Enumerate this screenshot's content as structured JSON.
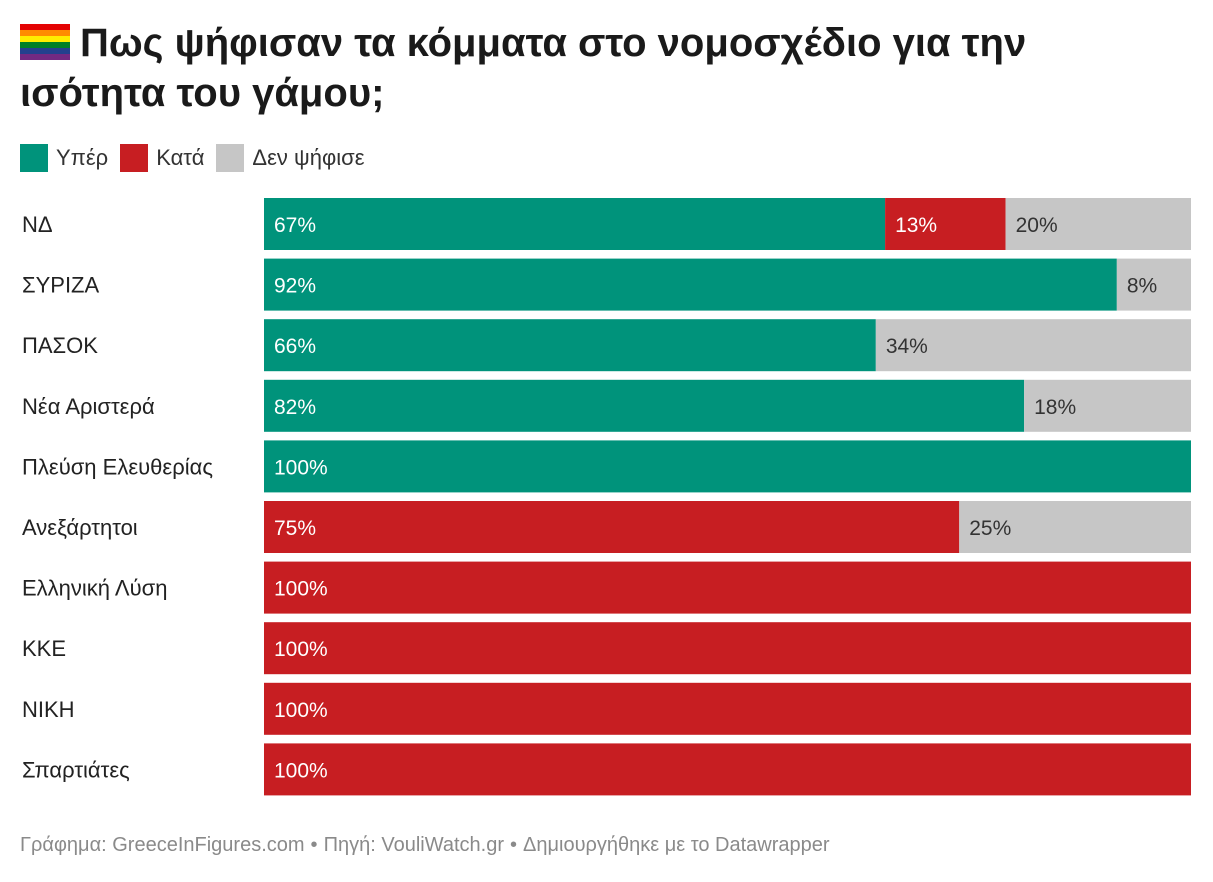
{
  "title": "Πως ψήφισαν τα κόμματα στο νομοσχέδιο για την ισότητα του γάμου;",
  "colors": {
    "yes": "#00937b",
    "no": "#c71e22",
    "absent": "#c6c6c6"
  },
  "chart_data": {
    "type": "bar",
    "orientation": "horizontal",
    "stacked": true,
    "categories": [
      "ΝΔ",
      "ΣΥΡΙΖΑ",
      "ΠΑΣΟΚ",
      "Νέα Αριστερά",
      "Πλεύση Ελευθερίας",
      "Ανεξάρτητοι",
      "Ελληνική Λύση",
      "ΚΚΕ",
      "ΝΙΚΗ",
      "Σπαρτιάτες"
    ],
    "series": [
      {
        "key": "yes",
        "name": "Υπέρ",
        "values": [
          67,
          92,
          66,
          82,
          100,
          0,
          0,
          0,
          0,
          0
        ]
      },
      {
        "key": "no",
        "name": "Κατά",
        "values": [
          13,
          0,
          0,
          0,
          0,
          75,
          100,
          100,
          100,
          100
        ]
      },
      {
        "key": "absent",
        "name": "Δεν ψήφισε",
        "values": [
          20,
          8,
          34,
          18,
          0,
          25,
          0,
          0,
          0,
          0
        ]
      }
    ],
    "value_suffix": "%",
    "xlim": [
      0,
      100
    ]
  },
  "footer": {
    "chart_credit": "Γράφημα: GreeceInFigures.com",
    "source": "Πηγή: VouliWatch.gr",
    "tool": "Δημιουργήθηκε με το Datawrapper",
    "separator": "•"
  }
}
